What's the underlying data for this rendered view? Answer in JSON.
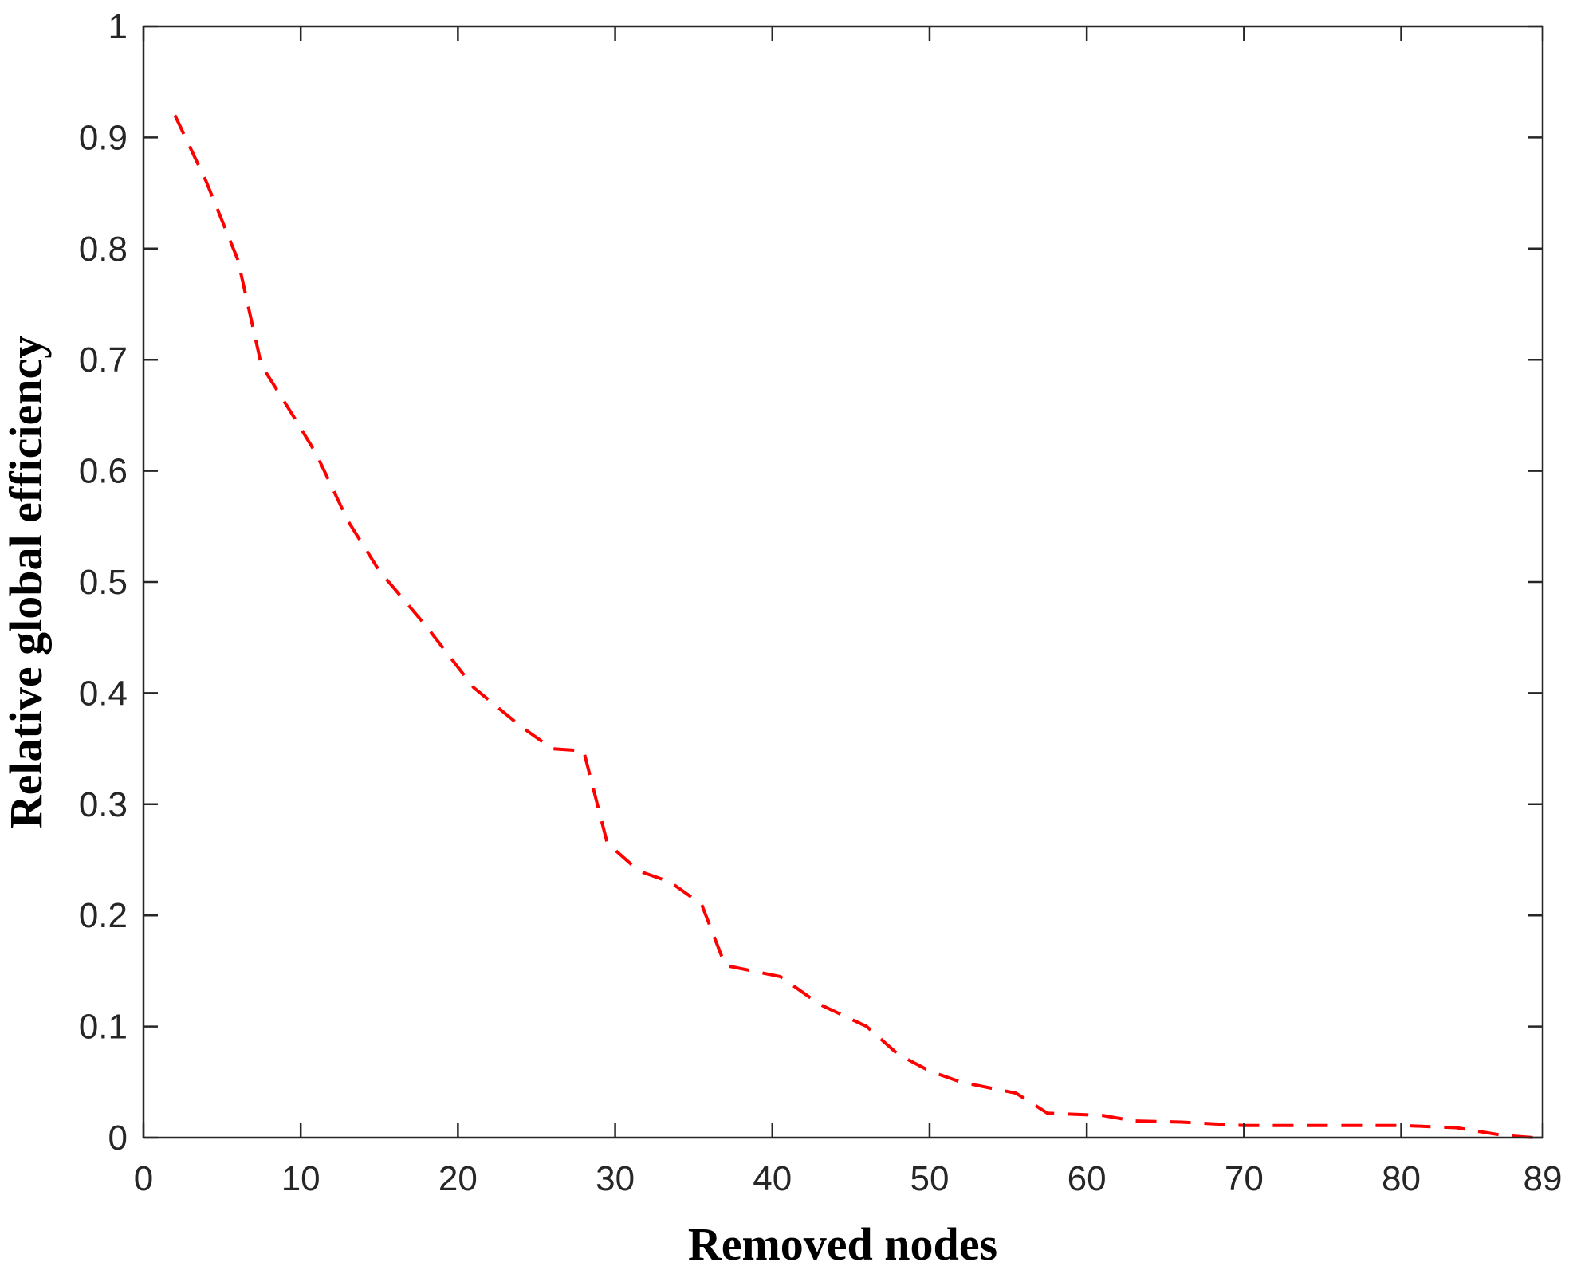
{
  "chart_data": {
    "type": "line",
    "title": "",
    "xlabel": "Removed nodes",
    "ylabel": "Relative global efficiency",
    "xlim": [
      0,
      89
    ],
    "ylim": [
      0,
      1
    ],
    "x_ticks": [
      0,
      10,
      20,
      30,
      40,
      50,
      60,
      70,
      80,
      89
    ],
    "y_ticks": [
      0,
      0.1,
      0.2,
      0.3,
      0.4,
      0.5,
      0.6,
      0.7,
      0.8,
      0.9,
      1
    ],
    "x_tick_labels": [
      "0",
      "10",
      "20",
      "30",
      "40",
      "50",
      "60",
      "70",
      "80",
      "89"
    ],
    "y_tick_labels": [
      "0",
      "0.1",
      "0.2",
      "0.3",
      "0.4",
      "0.5",
      "0.6",
      "0.7",
      "0.8",
      "0.9",
      "1"
    ],
    "grid": false,
    "series": [
      {
        "color": "#ff0000",
        "line_style": "dashed",
        "x": [
          2,
          4,
          6,
          7.5,
          9.5,
          11,
          13,
          15,
          18,
          21,
          24,
          26,
          28,
          29.5,
          31.5,
          33.5,
          35.5,
          37,
          40.5,
          43,
          46,
          48,
          50,
          52,
          55.5,
          57.5,
          61,
          63,
          66,
          70,
          75,
          80,
          83.5,
          86.5,
          88.5
        ],
        "y": [
          0.92,
          0.86,
          0.79,
          0.695,
          0.65,
          0.615,
          0.555,
          0.51,
          0.46,
          0.405,
          0.37,
          0.35,
          0.348,
          0.265,
          0.24,
          0.23,
          0.21,
          0.155,
          0.145,
          0.12,
          0.1,
          0.075,
          0.06,
          0.05,
          0.04,
          0.022,
          0.02,
          0.015,
          0.014,
          0.011,
          0.011,
          0.011,
          0.009,
          0.002,
          0.0
        ]
      }
    ]
  }
}
